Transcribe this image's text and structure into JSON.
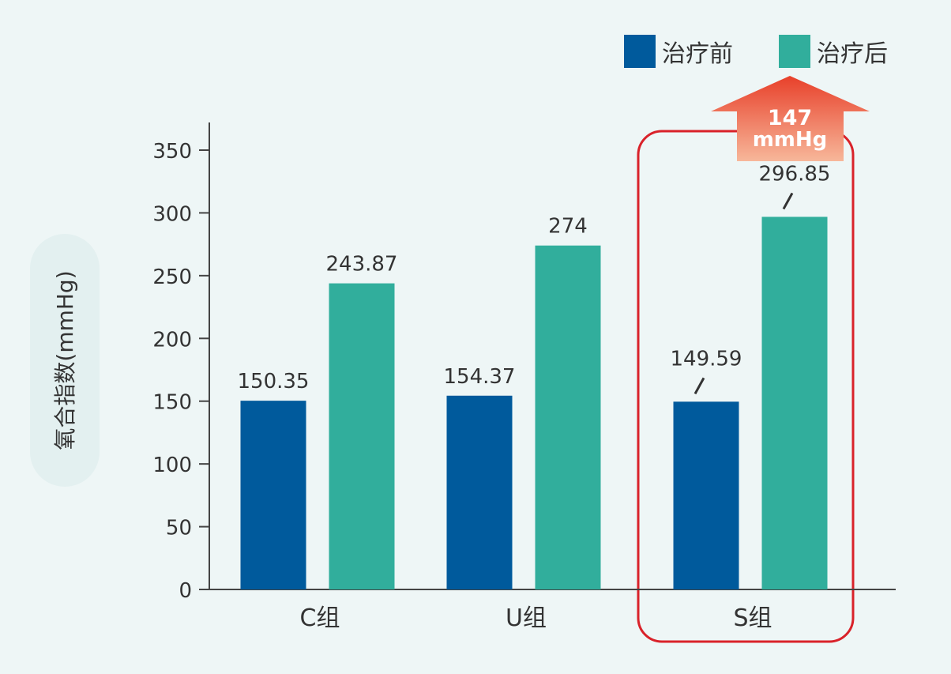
{
  "chart_data": {
    "type": "bar",
    "categories": [
      "C组",
      "U组",
      "S组"
    ],
    "series": [
      {
        "name": "治疗前",
        "values": [
          150.35,
          154.37,
          149.59
        ],
        "labels": [
          "150.35",
          "154.37",
          "149.59"
        ]
      },
      {
        "name": "治疗后",
        "values": [
          243.87,
          274,
          296.85
        ],
        "labels": [
          "243.87",
          "274",
          "296.85"
        ]
      }
    ],
    "ylabel": "氧合指数(mmHg)",
    "ylim": [
      0,
      350
    ],
    "yticks": [
      0,
      50,
      100,
      150,
      200,
      250,
      300,
      350
    ],
    "grid": false,
    "legend_position": "top-right",
    "colors": {
      "before": "#005a9c",
      "after": "#31ae9c",
      "highlight": "#d9222a",
      "arrow_top": "#e8402a",
      "arrow_bottom": "#f7b79a"
    },
    "highlight": {
      "category": "S组",
      "annotation_line1": "147",
      "annotation_line2": "mmHg"
    }
  }
}
